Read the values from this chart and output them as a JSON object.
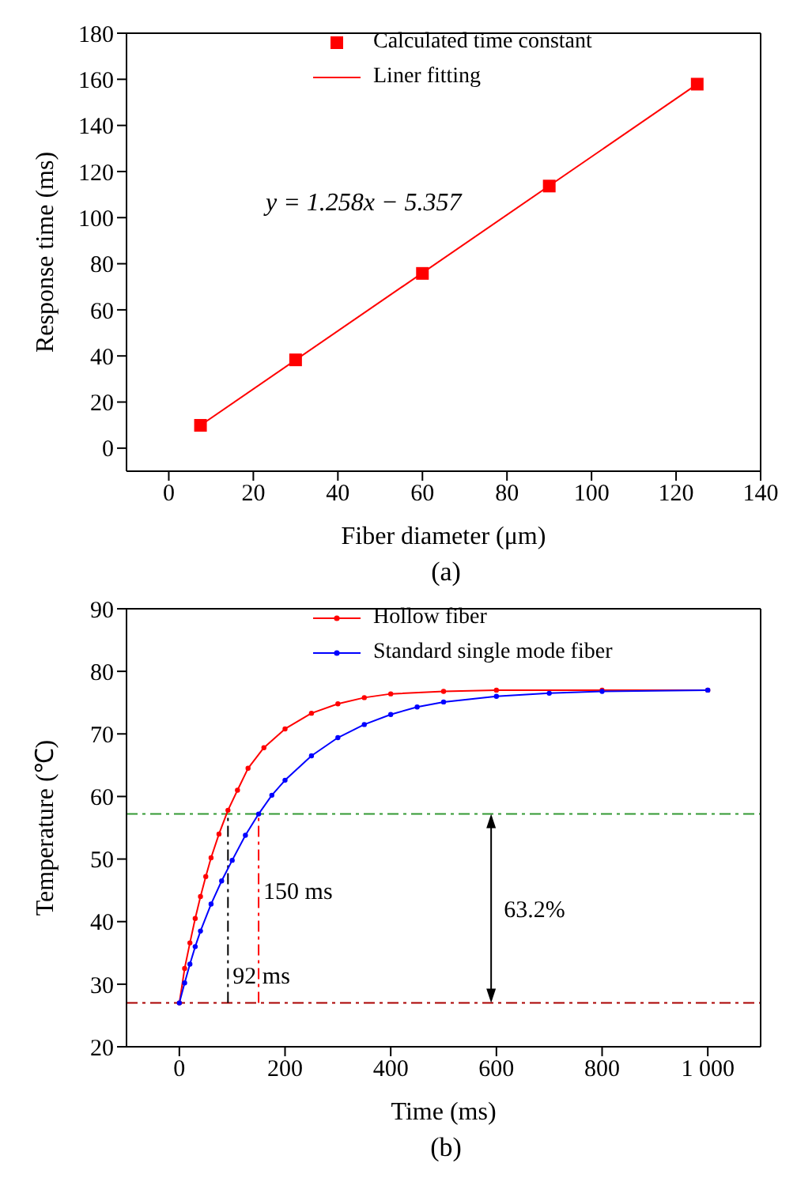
{
  "chart_data": [
    {
      "type": "scatter",
      "xlabel": "Fiber diameter (μm)",
      "ylabel": "Response time (ms)",
      "xlim": [
        -10,
        140
      ],
      "ylim": [
        -10,
        180
      ],
      "xticks": [
        0,
        20,
        40,
        60,
        80,
        100,
        120,
        140
      ],
      "yticks": [
        0,
        20,
        40,
        60,
        80,
        100,
        120,
        140,
        160,
        180
      ],
      "legend": "top",
      "series": [
        {
          "name": "Calculated time constant",
          "marker": "square",
          "color": "#ff0000",
          "x": [
            7.5,
            30,
            60,
            90,
            125
          ],
          "values": [
            9.9,
            38.3,
            75.8,
            113.7,
            157.9
          ]
        },
        {
          "name": "Liner fitting",
          "type": "line",
          "marker": "none",
          "color": "#ff0000",
          "x": [
            7.5,
            125
          ],
          "values": [
            9.9,
            157.9
          ]
        }
      ],
      "annotations": [
        "y = 1.258x − 5.357",
        "(a)"
      ]
    },
    {
      "type": "line",
      "xlabel": "Time (ms)",
      "ylabel": "Temperature (℃)",
      "xlim": [
        -100,
        1100
      ],
      "ylim": [
        20,
        90
      ],
      "xticks": [
        0,
        200,
        400,
        600,
        800,
        {
          "value": 1000,
          "label": "1 000"
        }
      ],
      "yticks": [
        20,
        30,
        40,
        50,
        60,
        70,
        80,
        90
      ],
      "legend": "top",
      "marker": "circle",
      "series": [
        {
          "name": "Hollow fiber",
          "color": "#ff0000",
          "x": [
            0,
            10,
            20,
            30,
            40,
            50,
            60,
            75,
            92,
            110,
            130,
            160,
            200,
            250,
            300,
            350,
            400,
            500,
            600,
            800,
            1000
          ],
          "values": [
            27,
            32.5,
            36.6,
            40.5,
            44,
            47.2,
            50.2,
            54,
            57.8,
            61,
            64.5,
            67.8,
            70.8,
            73.3,
            74.8,
            75.8,
            76.4,
            76.8,
            77,
            77,
            77
          ]
        },
        {
          "name": "Standard single mode fiber",
          "color": "#0000ff",
          "x": [
            0,
            10,
            20,
            30,
            40,
            60,
            80,
            100,
            125,
            150,
            175,
            200,
            250,
            300,
            350,
            400,
            450,
            500,
            600,
            700,
            800,
            1000
          ],
          "values": [
            27,
            30.2,
            33.2,
            36,
            38.5,
            42.8,
            46.5,
            49.8,
            53.8,
            57.2,
            60.2,
            62.6,
            66.5,
            69.4,
            71.5,
            73.1,
            74.3,
            75.1,
            76,
            76.5,
            76.8,
            77
          ]
        }
      ],
      "ref_lines": [
        {
          "axis": "y",
          "value": 57.2,
          "color": "#339933",
          "line_style": "dashed"
        },
        {
          "axis": "y",
          "value": 27,
          "color": "#aa0000",
          "line_style": "dashed"
        },
        {
          "axis": "x",
          "value": 92,
          "color": "#000000",
          "line_style": "dashed"
        },
        {
          "axis": "x",
          "value": 150,
          "color": "#ff0000",
          "line_style": "dashed"
        }
      ],
      "annotations": [
        {
          "text": "150 ms",
          "x": 150,
          "y": 45
        },
        {
          "text": "92 ms",
          "x": 92,
          "y": 31.5
        },
        "63.2%",
        "(b)"
      ]
    }
  ]
}
